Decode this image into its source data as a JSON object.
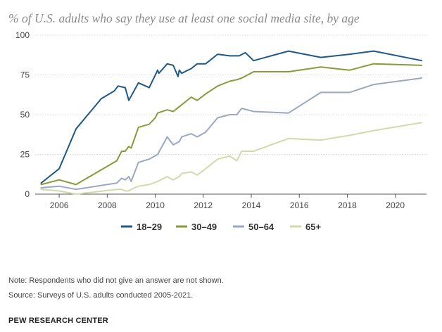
{
  "chart_data": {
    "type": "line",
    "title": "% of U.S. adults who say they use at least one social media site, by age",
    "xlabel": "",
    "ylabel": "",
    "xlim": [
      2005,
      2021.3
    ],
    "ylim": [
      0,
      100
    ],
    "x_ticks": [
      2006,
      2008,
      2010,
      2012,
      2014,
      2016,
      2018,
      2020
    ],
    "y_ticks": [
      0,
      25,
      50,
      75,
      100
    ],
    "grid": "horizontal",
    "legend": "bottom",
    "series": [
      {
        "name": "18-29",
        "color": "#1f5a87",
        "points": [
          [
            2005.25,
            7
          ],
          [
            2006.0,
            16
          ],
          [
            2006.7,
            41
          ],
          [
            2007.75,
            60
          ],
          [
            2008.3,
            65
          ],
          [
            2008.45,
            68
          ],
          [
            2008.75,
            67
          ],
          [
            2008.9,
            59
          ],
          [
            2009.3,
            70
          ],
          [
            2009.75,
            67
          ],
          [
            2010.1,
            78
          ],
          [
            2010.15,
            76
          ],
          [
            2010.5,
            82
          ],
          [
            2010.75,
            81
          ],
          [
            2010.95,
            74
          ],
          [
            2011.0,
            78
          ],
          [
            2011.1,
            76
          ],
          [
            2011.5,
            79
          ],
          [
            2011.75,
            82
          ],
          [
            2012.1,
            82
          ],
          [
            2012.6,
            88
          ],
          [
            2013.1,
            87
          ],
          [
            2013.5,
            87
          ],
          [
            2013.75,
            89
          ],
          [
            2014.1,
            84
          ],
          [
            2015.55,
            90
          ],
          [
            2016.9,
            86
          ],
          [
            2018.1,
            88
          ],
          [
            2019.1,
            90
          ],
          [
            2021.1,
            84
          ]
        ]
      },
      {
        "name": "30-49",
        "color": "#8a9a3b",
        "points": [
          [
            2005.25,
            6
          ],
          [
            2006.0,
            9
          ],
          [
            2006.7,
            6
          ],
          [
            2008.4,
            21
          ],
          [
            2008.6,
            27
          ],
          [
            2008.75,
            27
          ],
          [
            2008.9,
            30
          ],
          [
            2009.0,
            29
          ],
          [
            2009.3,
            42
          ],
          [
            2009.75,
            44
          ],
          [
            2010.0,
            48
          ],
          [
            2010.1,
            51
          ],
          [
            2010.5,
            53
          ],
          [
            2010.75,
            52
          ],
          [
            2011.0,
            55
          ],
          [
            2011.5,
            61
          ],
          [
            2011.75,
            59
          ],
          [
            2012.1,
            63
          ],
          [
            2012.6,
            68
          ],
          [
            2013.1,
            71
          ],
          [
            2013.4,
            72
          ],
          [
            2013.6,
            73
          ],
          [
            2014.1,
            77
          ],
          [
            2015.55,
            77
          ],
          [
            2016.9,
            80
          ],
          [
            2018.1,
            78
          ],
          [
            2019.1,
            82
          ],
          [
            2021.1,
            81
          ]
        ]
      },
      {
        "name": "50-64",
        "color": "#9aa8c2",
        "points": [
          [
            2005.25,
            4
          ],
          [
            2006.0,
            5
          ],
          [
            2006.7,
            3
          ],
          [
            2008.4,
            7
          ],
          [
            2008.6,
            10
          ],
          [
            2008.75,
            9
          ],
          [
            2008.9,
            11
          ],
          [
            2009.0,
            8
          ],
          [
            2009.3,
            20
          ],
          [
            2009.75,
            22
          ],
          [
            2010.1,
            25
          ],
          [
            2010.5,
            36
          ],
          [
            2010.75,
            31
          ],
          [
            2011.0,
            33
          ],
          [
            2011.1,
            36
          ],
          [
            2011.5,
            38
          ],
          [
            2011.75,
            36
          ],
          [
            2012.1,
            39
          ],
          [
            2012.6,
            48
          ],
          [
            2013.1,
            50
          ],
          [
            2013.4,
            50
          ],
          [
            2013.6,
            54
          ],
          [
            2014.1,
            52
          ],
          [
            2015.55,
            51
          ],
          [
            2016.9,
            64
          ],
          [
            2018.1,
            64
          ],
          [
            2019.1,
            69
          ],
          [
            2021.1,
            73
          ]
        ]
      },
      {
        "name": "65+",
        "color": "#cfdbaa",
        "points": [
          [
            2005.25,
            3
          ],
          [
            2006.0,
            2
          ],
          [
            2006.7,
            0
          ],
          [
            2008.4,
            3
          ],
          [
            2008.6,
            3
          ],
          [
            2008.75,
            2
          ],
          [
            2008.9,
            2
          ],
          [
            2009.0,
            3
          ],
          [
            2009.3,
            5
          ],
          [
            2009.75,
            6
          ],
          [
            2010.1,
            8
          ],
          [
            2010.5,
            11
          ],
          [
            2010.75,
            9
          ],
          [
            2011.0,
            11
          ],
          [
            2011.1,
            13
          ],
          [
            2011.5,
            14
          ],
          [
            2011.75,
            12
          ],
          [
            2012.1,
            16
          ],
          [
            2012.6,
            22
          ],
          [
            2013.1,
            24
          ],
          [
            2013.4,
            21
          ],
          [
            2013.6,
            27
          ],
          [
            2014.1,
            27
          ],
          [
            2015.55,
            35
          ],
          [
            2016.9,
            34
          ],
          [
            2018.1,
            37
          ],
          [
            2019.1,
            40
          ],
          [
            2021.1,
            45
          ]
        ]
      }
    ]
  },
  "notes": {
    "note": "Note: Respondents who did not give an answer are not shown.",
    "source": "Source: Surveys of U.S. adults conducted 2005-2021."
  },
  "brand": "PEW RESEARCH CENTER"
}
